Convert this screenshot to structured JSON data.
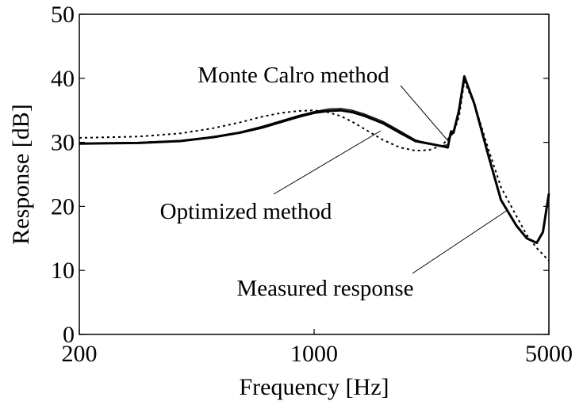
{
  "chart_data": {
    "type": "line",
    "xlabel": "Frequency [Hz]",
    "ylabel": "Response [dB]",
    "xscale": "log",
    "xlim": [
      200,
      5000
    ],
    "xticks": [
      200,
      1000,
      5000
    ],
    "ylim": [
      0,
      50
    ],
    "yticks": [
      0,
      10,
      20,
      30,
      40,
      50
    ],
    "x": [
      200,
      300,
      400,
      500,
      600,
      700,
      800,
      900,
      1000,
      1100,
      1200,
      1300,
      1400,
      1600,
      1800,
      2000,
      2200,
      2400,
      2500,
      2550,
      2600,
      2700,
      2800,
      3000,
      3300,
      3600,
      4000,
      4300,
      4600,
      4800,
      5000
    ],
    "series": [
      {
        "name": "Optimized method",
        "color": "#000000",
        "line_style": "solid",
        "values": [
          29.8,
          29.9,
          30.2,
          30.8,
          31.5,
          32.3,
          33.2,
          34,
          34.6,
          34.9,
          35,
          34.7,
          34.2,
          33,
          31.5,
          30.2,
          29.8,
          29.4,
          29.2,
          31.5,
          31.5,
          35,
          40.3,
          36,
          28,
          21,
          17,
          15,
          14.3,
          16,
          22
        ]
      },
      {
        "name": "Monte Calro method",
        "color": "#000000",
        "line_style": "thin",
        "values": [
          29.8,
          30,
          30.3,
          30.9,
          31.6,
          32.5,
          33.4,
          34.2,
          34.8,
          35.2,
          35.3,
          35,
          34.5,
          33.3,
          31.8,
          30.4,
          29.8,
          29.5,
          29.6,
          31.8,
          31.8,
          35,
          40.3,
          36,
          28,
          21,
          17,
          15,
          14.3,
          16,
          22
        ]
      },
      {
        "name": "Measured response",
        "color": "#000000",
        "line_style": "dotted",
        "values": [
          30.7,
          30.9,
          31.4,
          32.2,
          33.1,
          34,
          34.6,
          34.9,
          35,
          34.7,
          34.1,
          33.2,
          32.2,
          30.4,
          29.2,
          28.7,
          28.8,
          29.5,
          30.5,
          31,
          31.5,
          34,
          39.5,
          36,
          29,
          23,
          18.5,
          15.5,
          13.5,
          12.5,
          11.5
        ]
      }
    ]
  }
}
